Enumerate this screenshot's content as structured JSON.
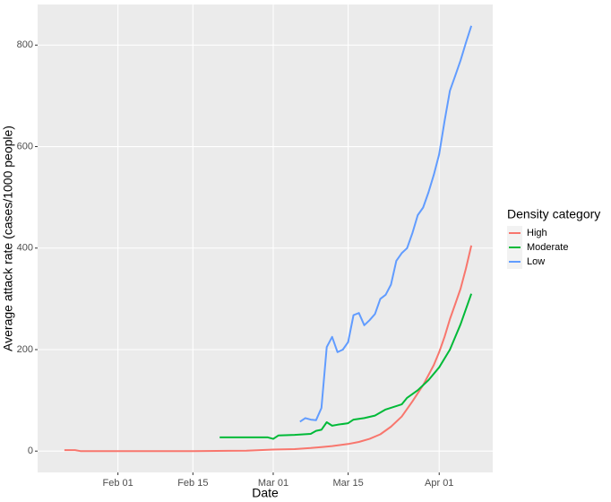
{
  "chart_data": {
    "type": "line",
    "x_label": "Date",
    "y_label": "Average attack rate (cases/1000 people)",
    "legend_title": "Density category",
    "legend_position": "right",
    "grid": true,
    "xlim": [
      "Jan 17",
      "Apr 11"
    ],
    "xticks": [
      "Feb 01",
      "Feb 15",
      "Mar 01",
      "Mar 15",
      "Apr 01"
    ],
    "ylim": [
      -42,
      880
    ],
    "yticks": [
      0,
      200,
      400,
      600,
      800
    ],
    "series": [
      {
        "name": "High",
        "color": "#f8766d",
        "x": [
          "Jan 22",
          "Jan 24",
          "Jan 25",
          "Feb 15",
          "Feb 25",
          "Mar 01",
          "Mar 05",
          "Mar 08",
          "Mar 10",
          "Mar 12",
          "Mar 15",
          "Mar 17",
          "Mar 19",
          "Mar 21",
          "Mar 23",
          "Mar 25",
          "Mar 27",
          "Mar 29",
          "Mar 31",
          "Apr 01",
          "Apr 02",
          "Apr 03",
          "Apr 04",
          "Apr 05",
          "Apr 06",
          "Apr 07"
        ],
        "values": [
          2,
          2,
          0,
          0,
          1,
          3,
          4,
          6,
          8,
          10,
          14,
          18,
          24,
          33,
          48,
          68,
          98,
          130,
          170,
          195,
          225,
          260,
          290,
          320,
          360,
          405
        ]
      },
      {
        "name": "Moderate",
        "color": "#00ba38",
        "x": [
          "Feb 20",
          "Feb 29",
          "Mar 01",
          "Mar 02",
          "Mar 05",
          "Mar 08",
          "Mar 09",
          "Mar 10",
          "Mar 11",
          "Mar 12",
          "Mar 13",
          "Mar 15",
          "Mar 16",
          "Mar 18",
          "Mar 20",
          "Mar 22",
          "Mar 25",
          "Mar 26",
          "Mar 28",
          "Mar 30",
          "Apr 01",
          "Apr 03",
          "Apr 05",
          "Apr 07"
        ],
        "values": [
          27,
          27,
          24,
          31,
          32,
          34,
          40,
          42,
          57,
          50,
          52,
          55,
          62,
          65,
          70,
          82,
          92,
          105,
          120,
          140,
          165,
          200,
          250,
          310
        ]
      },
      {
        "name": "Low",
        "color": "#619cff",
        "x": [
          "Mar 06",
          "Mar 07",
          "Mar 08",
          "Mar 09",
          "Mar 10",
          "Mar 11",
          "Mar 12",
          "Mar 13",
          "Mar 14",
          "Mar 15",
          "Mar 16",
          "Mar 17",
          "Mar 18",
          "Mar 19",
          "Mar 20",
          "Mar 21",
          "Mar 22",
          "Mar 23",
          "Mar 24",
          "Mar 25",
          "Mar 26",
          "Mar 27",
          "Mar 28",
          "Mar 29",
          "Mar 30",
          "Mar 31",
          "Apr 01",
          "Apr 02",
          "Apr 03",
          "Apr 04",
          "Apr 05",
          "Apr 06",
          "Apr 07"
        ],
        "values": [
          58,
          65,
          62,
          61,
          85,
          205,
          225,
          195,
          200,
          215,
          268,
          272,
          248,
          258,
          270,
          300,
          308,
          328,
          375,
          390,
          400,
          430,
          465,
          480,
          510,
          545,
          585,
          650,
          710,
          740,
          770,
          805,
          838
        ]
      }
    ]
  }
}
